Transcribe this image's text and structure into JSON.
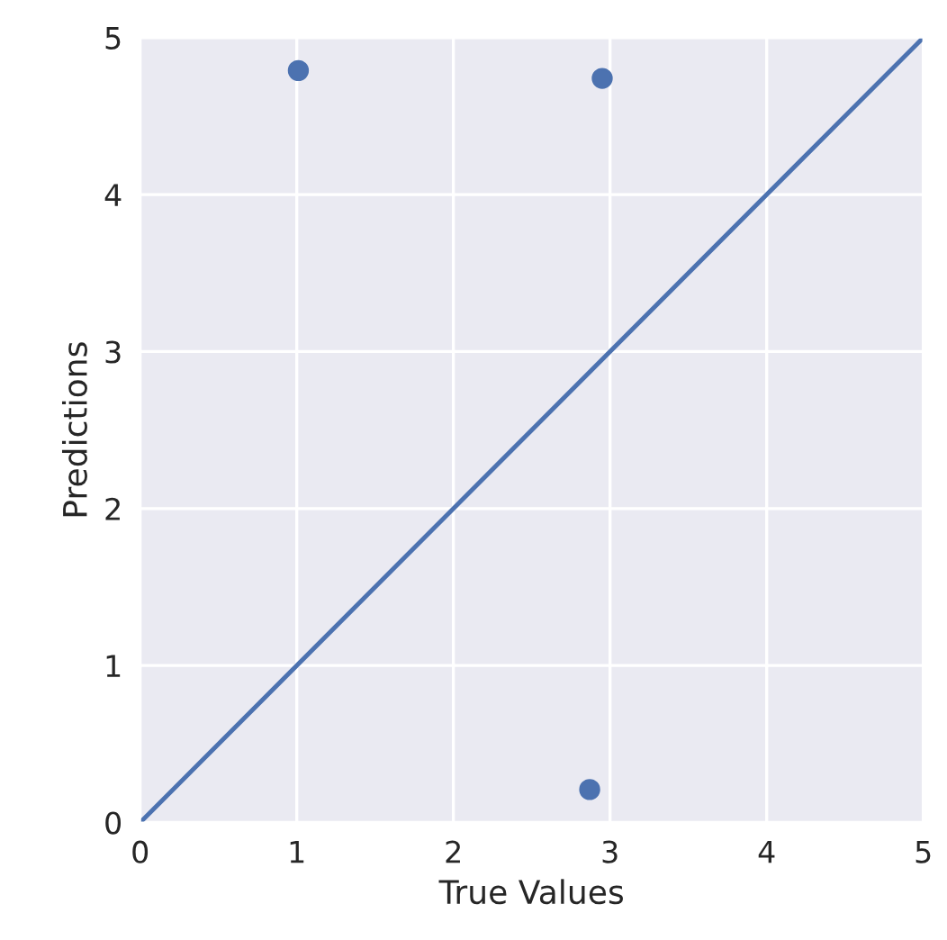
{
  "chart_data": {
    "type": "scatter",
    "xlabel": "True Values",
    "ylabel": "Predictions",
    "series": [
      {
        "color": "#4c72b0",
        "x": [
          1.01,
          2.95,
          2.87
        ],
        "values": [
          4.79,
          4.74,
          0.21
        ],
        "marker": "circle"
      },
      {
        "type": "line",
        "color": "#4c72b0",
        "x": [
          0,
          5
        ],
        "values": [
          0,
          5
        ],
        "marker": "none",
        "line_style": "solid"
      }
    ],
    "xlim": [
      0,
      5
    ],
    "ylim": [
      0,
      5
    ],
    "xticks": [
      0,
      1,
      2,
      3,
      4,
      5
    ],
    "yticks": [
      0,
      1,
      2,
      3,
      4,
      5
    ],
    "grid": true,
    "legend": false
  }
}
